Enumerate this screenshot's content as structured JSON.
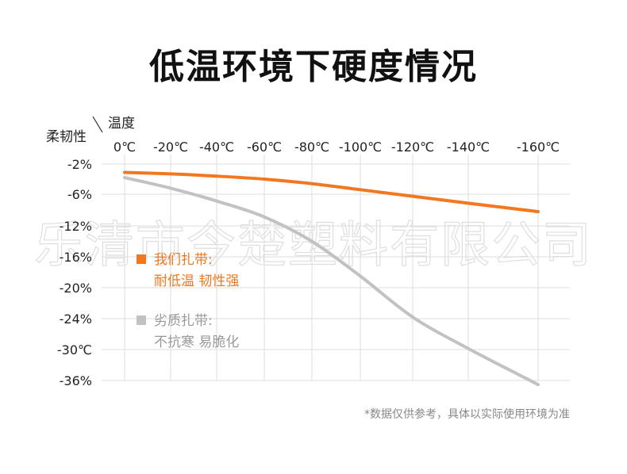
{
  "title": "低温环境下硬度情况",
  "watermark": "乐清市今楚塑料有限公司",
  "footnote": "*数据仅供参考，具体以实际使用环境为准",
  "chart_data": {
    "type": "line",
    "xlabel": "温度",
    "ylabel": "柔韧性",
    "x_tick_labels": [
      "0℃",
      "-20℃",
      "-40℃",
      "-60℃",
      "-80℃",
      "-100℃",
      "-120℃",
      "-140℃",
      "-160℃"
    ],
    "y_tick_labels": [
      "-2%",
      "-6%",
      "-12%",
      "-16%",
      "-20%",
      "-24%",
      "-30℃",
      "-36%"
    ],
    "x": [
      0,
      -20,
      -40,
      -60,
      -80,
      -100,
      -120,
      -140,
      -160
    ],
    "series": [
      {
        "name": "我们扎带:",
        "description": "耐低温 韧性强",
        "color": "#f07820",
        "values": [
          -3.1,
          -3.3,
          -3.6,
          -4.0,
          -4.6,
          -5.4,
          -6.4,
          -7.7,
          -9.3
        ]
      },
      {
        "name": "劣质扎带:",
        "description": "不抗寒 易脆化",
        "color": "#c2c2c2",
        "values": [
          -3.8,
          -5.2,
          -7.3,
          -10.3,
          -14.0,
          -18.5,
          -23.8,
          -29.8,
          -36.8
        ]
      }
    ],
    "grid": true,
    "legend_position": "left-middle"
  }
}
